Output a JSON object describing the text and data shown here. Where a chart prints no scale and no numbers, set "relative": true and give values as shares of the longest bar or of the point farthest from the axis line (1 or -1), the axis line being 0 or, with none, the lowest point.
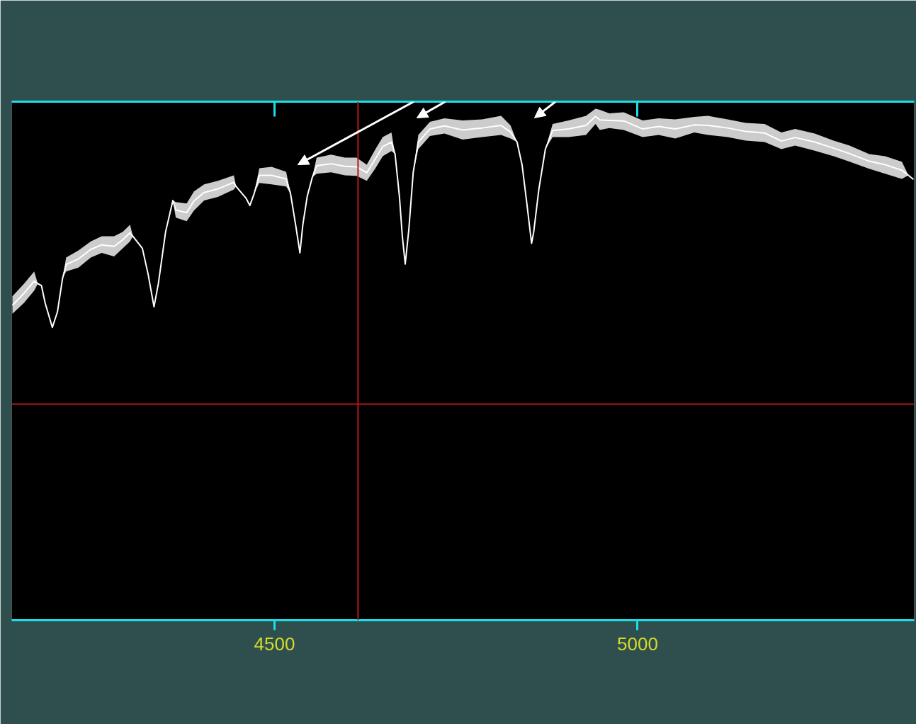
{
  "chart_data": {
    "type": "line",
    "relative": true,
    "line_style": "solid",
    "xlim": [
      4138,
      5381
    ],
    "xticks": [
      4500,
      5000
    ],
    "x": [
      4139,
      4155,
      4169,
      4174,
      4179,
      4184,
      4194,
      4201,
      4208,
      4213,
      4230,
      4247,
      4262,
      4279,
      4291,
      4301,
      4305,
      4318,
      4326,
      4334,
      4340,
      4350,
      4360,
      4364,
      4379,
      4389,
      4403,
      4422,
      4444,
      4447,
      4461,
      4466,
      4472,
      4479,
      4496,
      4516,
      4522,
      4529,
      4535,
      4539,
      4545,
      4552,
      4558,
      4578,
      4597,
      4613,
      4627,
      4639,
      4649,
      4661,
      4666,
      4672,
      4676,
      4680,
      4685,
      4691,
      4698,
      4714,
      4734,
      4759,
      4786,
      4812,
      4825,
      4834,
      4841,
      4847,
      4854,
      4857,
      4864,
      4873,
      4883,
      4905,
      4929,
      4942,
      4948,
      4961,
      4981,
      5007,
      5029,
      5052,
      5078,
      5097,
      5124,
      5149,
      5175,
      5198,
      5217,
      5244,
      5270,
      5292,
      5319,
      5341,
      5364,
      5373,
      5380
    ],
    "series": [
      {
        "color": "#ffffff",
        "values": [
          0.625,
          0.649,
          0.673,
          0.668,
          0.664,
          0.63,
          0.581,
          0.612,
          0.678,
          0.706,
          0.717,
          0.736,
          0.745,
          0.742,
          0.755,
          0.769,
          0.762,
          0.738,
          0.686,
          0.622,
          0.668,
          0.771,
          0.833,
          0.814,
          0.809,
          0.832,
          0.849,
          0.856,
          0.869,
          0.861,
          0.837,
          0.823,
          0.847,
          0.883,
          0.883,
          0.876,
          0.847,
          0.785,
          0.729,
          0.785,
          0.841,
          0.879,
          0.902,
          0.906,
          0.901,
          0.9,
          0.888,
          0.916,
          0.94,
          0.949,
          0.925,
          0.841,
          0.762,
          0.707,
          0.776,
          0.889,
          0.949,
          0.975,
          0.981,
          0.973,
          0.977,
          0.982,
          0.969,
          0.949,
          0.903,
          0.833,
          0.748,
          0.771,
          0.855,
          0.935,
          0.972,
          0.975,
          0.982,
          1.0,
          0.993,
          0.992,
          0.991,
          0.975,
          0.98,
          0.975,
          0.983,
          0.982,
          0.977,
          0.97,
          0.967,
          0.951,
          0.958,
          0.949,
          0.937,
          0.926,
          0.911,
          0.904,
          0.893,
          0.883,
          0.875
        ],
        "lower": [
          0.608,
          0.63,
          0.654,
          0.668,
          0.664,
          0.63,
          0.581,
          0.612,
          0.678,
          0.692,
          0.7,
          0.72,
          0.729,
          0.722,
          0.738,
          0.752,
          0.762,
          0.738,
          0.686,
          0.622,
          0.668,
          0.771,
          0.833,
          0.799,
          0.792,
          0.813,
          0.833,
          0.84,
          0.855,
          0.861,
          0.837,
          0.823,
          0.847,
          0.868,
          0.865,
          0.861,
          0.847,
          0.785,
          0.729,
          0.785,
          0.841,
          0.879,
          0.886,
          0.889,
          0.883,
          0.882,
          0.872,
          0.897,
          0.921,
          0.931,
          0.925,
          0.841,
          0.762,
          0.707,
          0.776,
          0.889,
          0.935,
          0.961,
          0.966,
          0.954,
          0.959,
          0.963,
          0.956,
          0.949,
          0.903,
          0.833,
          0.748,
          0.771,
          0.855,
          0.935,
          0.959,
          0.959,
          0.963,
          0.985,
          0.973,
          0.977,
          0.973,
          0.959,
          0.963,
          0.956,
          0.968,
          0.963,
          0.959,
          0.952,
          0.949,
          0.935,
          0.942,
          0.932,
          0.921,
          0.91,
          0.896,
          0.886,
          0.876,
          0.883,
          0.875
        ],
        "upper": [
          0.643,
          0.668,
          0.692,
          0.668,
          0.664,
          0.63,
          0.581,
          0.612,
          0.678,
          0.72,
          0.734,
          0.752,
          0.762,
          0.762,
          0.771,
          0.785,
          0.762,
          0.738,
          0.686,
          0.622,
          0.668,
          0.771,
          0.833,
          0.83,
          0.827,
          0.851,
          0.865,
          0.872,
          0.883,
          0.861,
          0.837,
          0.823,
          0.847,
          0.897,
          0.9,
          0.89,
          0.847,
          0.785,
          0.729,
          0.785,
          0.841,
          0.879,
          0.918,
          0.924,
          0.918,
          0.918,
          0.904,
          0.935,
          0.959,
          0.968,
          0.925,
          0.841,
          0.762,
          0.707,
          0.776,
          0.889,
          0.963,
          0.989,
          0.996,
          0.992,
          0.994,
          1.001,
          0.982,
          0.949,
          0.903,
          0.833,
          0.748,
          0.771,
          0.855,
          0.935,
          0.985,
          0.992,
          1.001,
          1.015,
          1.013,
          1.006,
          1.008,
          0.992,
          0.996,
          0.994,
          0.999,
          1.001,
          0.994,
          0.987,
          0.985,
          0.968,
          0.975,
          0.966,
          0.952,
          0.942,
          0.925,
          0.921,
          0.91,
          0.883,
          0.875
        ]
      }
    ],
    "ref_lines": [
      {
        "axis": "x",
        "value": 4615,
        "color": "#b0181c"
      },
      {
        "axis": "y",
        "value": 0.429,
        "color": "#b0181c"
      }
    ]
  }
}
